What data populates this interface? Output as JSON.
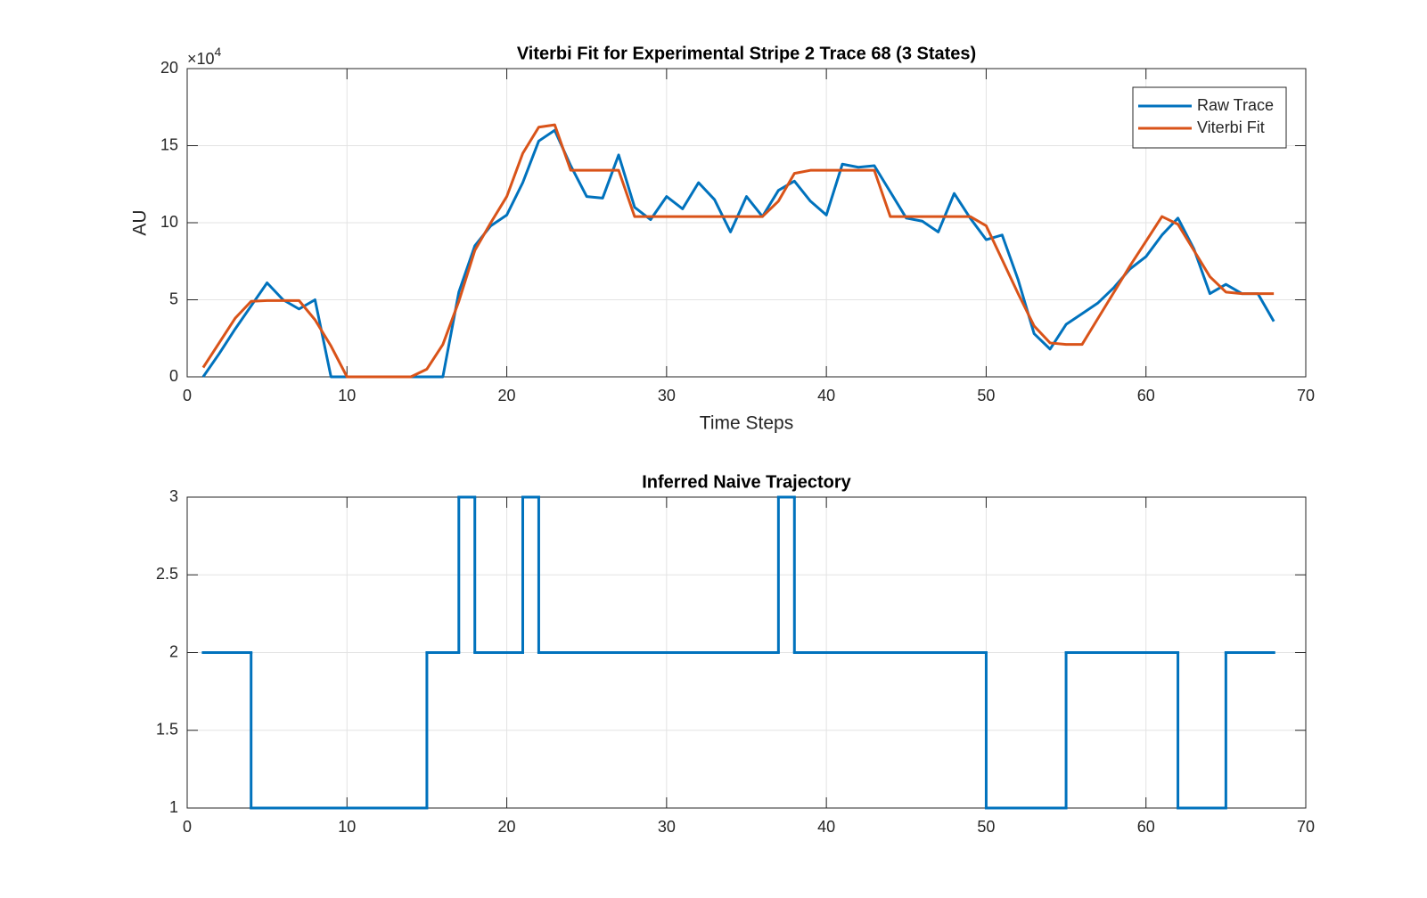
{
  "chart_data": [
    {
      "type": "line",
      "title": "Viterbi Fit for Experimental Stripe 2 Trace 68 (3 States)",
      "x_label": "Time Steps",
      "y_label": "AU",
      "y_exponent": {
        "base": "×10",
        "power": "4"
      },
      "x": [
        1,
        2,
        3,
        4,
        5,
        6,
        7,
        8,
        9,
        10,
        11,
        12,
        13,
        14,
        15,
        16,
        17,
        18,
        19,
        20,
        21,
        22,
        23,
        24,
        25,
        26,
        27,
        28,
        29,
        30,
        31,
        32,
        33,
        34,
        35,
        36,
        37,
        38,
        39,
        40,
        41,
        42,
        43,
        44,
        45,
        46,
        47,
        48,
        49,
        50,
        51,
        52,
        53,
        54,
        55,
        56,
        57,
        58,
        59,
        60,
        61,
        62,
        63,
        64,
        65,
        66,
        67,
        68
      ],
      "series": [
        {
          "name": "Raw Trace",
          "color": "#0072BD",
          "values": [
            0,
            1.5,
            3.1,
            4.6,
            6.1,
            5.0,
            4.4,
            5.0,
            0,
            0,
            0,
            0,
            0,
            0,
            0,
            0,
            5.5,
            8.5,
            9.8,
            10.5,
            12.6,
            15.3,
            16.0,
            13.7,
            11.7,
            11.6,
            14.4,
            11.0,
            10.2,
            11.7,
            10.9,
            12.6,
            11.5,
            9.4,
            11.7,
            10.4,
            12.1,
            12.7,
            11.4,
            10.5,
            13.8,
            13.6,
            13.7,
            12.0,
            10.3,
            10.1,
            9.4,
            11.9,
            10.3,
            8.9,
            9.2,
            6.3,
            2.8,
            1.8,
            3.4,
            4.1,
            4.8,
            5.8,
            7.0,
            7.8,
            9.2,
            10.3,
            8.3,
            5.4,
            6.0,
            5.4,
            5.4,
            3.6
          ]
        },
        {
          "name": "Viterbi Fit",
          "color": "#D95319",
          "values": [
            0.6,
            2.2,
            3.8,
            4.9,
            4.95,
            4.95,
            4.95,
            3.7,
            2.0,
            0,
            0,
            0,
            0,
            0,
            0.5,
            2.1,
            4.9,
            8.2,
            10.0,
            11.7,
            14.5,
            16.2,
            16.35,
            13.4,
            13.4,
            13.4,
            13.4,
            10.4,
            10.4,
            10.4,
            10.4,
            10.4,
            10.4,
            10.4,
            10.4,
            10.4,
            11.4,
            13.2,
            13.4,
            13.4,
            13.4,
            13.4,
            13.4,
            10.4,
            10.4,
            10.4,
            10.4,
            10.4,
            10.4,
            9.8,
            7.6,
            5.4,
            3.3,
            2.2,
            2.1,
            2.1,
            3.8,
            5.5,
            7.2,
            8.8,
            10.4,
            9.9,
            8.2,
            6.5,
            5.5,
            5.4,
            5.4,
            5.4
          ]
        }
      ],
      "xlim": [
        0,
        70
      ],
      "xticks": [
        0,
        10,
        20,
        30,
        40,
        50,
        60,
        70
      ],
      "ylim": [
        0,
        20
      ],
      "yticks": [
        0,
        5,
        10,
        15,
        20
      ],
      "grid": true,
      "legend": "upper right"
    },
    {
      "type": "stairs",
      "title": "Inferred Naive Trajectory",
      "x": [
        1,
        2,
        3,
        4,
        5,
        6,
        7,
        8,
        9,
        10,
        11,
        12,
        13,
        14,
        15,
        16,
        17,
        18,
        19,
        20,
        21,
        22,
        23,
        24,
        25,
        26,
        27,
        28,
        29,
        30,
        31,
        32,
        33,
        34,
        35,
        36,
        37,
        38,
        39,
        40,
        41,
        42,
        43,
        44,
        45,
        46,
        47,
        48,
        49,
        50,
        51,
        52,
        53,
        54,
        55,
        56,
        57,
        58,
        59,
        60,
        61,
        62,
        63,
        64,
        65,
        66,
        67,
        68
      ],
      "series": [
        {
          "color": "#0072BD",
          "values": [
            2,
            2,
            2,
            1,
            1,
            1,
            1,
            1,
            1,
            1,
            1,
            1,
            1,
            1,
            2,
            2,
            3,
            2,
            2,
            2,
            3,
            2,
            2,
            2,
            2,
            2,
            2,
            2,
            2,
            2,
            2,
            2,
            2,
            2,
            2,
            2,
            3,
            2,
            2,
            2,
            2,
            2,
            2,
            2,
            2,
            2,
            2,
            2,
            2,
            1,
            1,
            1,
            1,
            1,
            2,
            2,
            2,
            2,
            2,
            2,
            2,
            1,
            1,
            1,
            2,
            2,
            2,
            2
          ]
        }
      ],
      "xlim": [
        0,
        70
      ],
      "xticks": [
        0,
        10,
        20,
        30,
        40,
        50,
        60,
        70
      ],
      "ylim": [
        1,
        3
      ],
      "yticks": [
        1,
        1.5,
        2,
        2.5,
        3
      ],
      "grid": true
    }
  ]
}
